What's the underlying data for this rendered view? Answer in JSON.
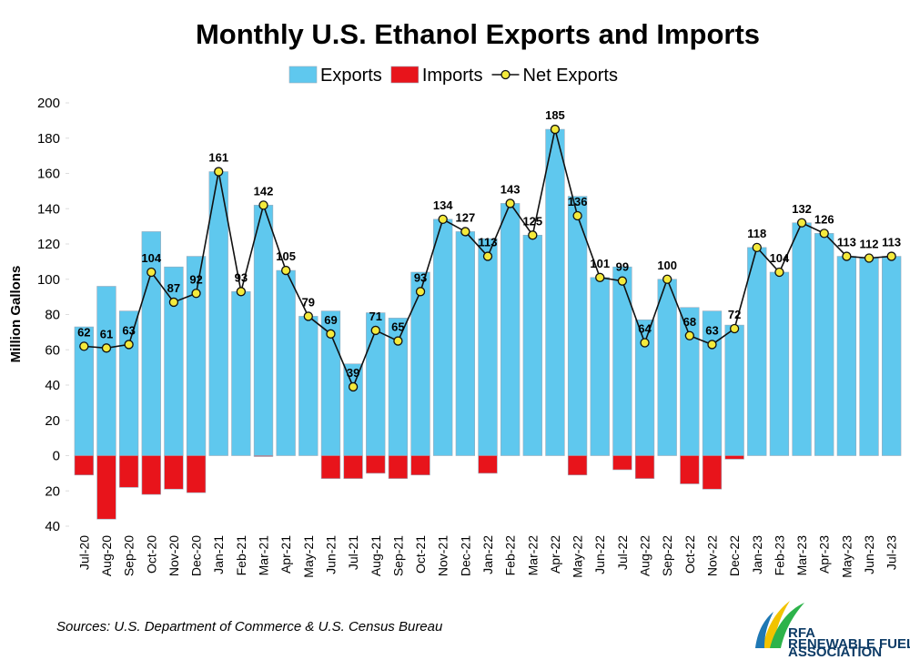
{
  "chart_data": {
    "type": "bar",
    "title": "Monthly U.S. Ethanol Exports and Imports",
    "y_label": "Million Gallons",
    "source": "Sources: U.S. Department of Commerce & U.S. Census Bureau",
    "logo": {
      "name": "RFA",
      "tagline_1": "RENEWABLE FUELS",
      "tagline_2": "ASSOCIATION"
    },
    "categories": [
      "Jul-20",
      "Aug-20",
      "Sep-20",
      "Oct-20",
      "Nov-20",
      "Dec-20",
      "Jan-21",
      "Feb-21",
      "Mar-21",
      "Apr-21",
      "May-21",
      "Jun-21",
      "Jul-21",
      "Aug-21",
      "Sep-21",
      "Oct-21",
      "Nov-21",
      "Dec-21",
      "Jan-22",
      "Feb-22",
      "Mar-22",
      "Apr-22",
      "May-22",
      "Jun-22",
      "Jul-22",
      "Aug-22",
      "Sep-22",
      "Oct-22",
      "Nov-22",
      "Dec-22",
      "Jan-23",
      "Feb-23",
      "Mar-23",
      "Apr-23",
      "May-23",
      "Jun-23",
      "Jul-23"
    ],
    "series": [
      {
        "name": "Exports",
        "type": "bar",
        "color": "#5fc8ee",
        "values": [
          73,
          96,
          82,
          127,
          107,
          113,
          161,
          93,
          142,
          105,
          79,
          82,
          52,
          81,
          78,
          104,
          134,
          127,
          123,
          143,
          125,
          185,
          147,
          101,
          107,
          77,
          100,
          84,
          82,
          74,
          118,
          104,
          132,
          126,
          113,
          112,
          113
        ]
      },
      {
        "name": "Imports",
        "type": "bar",
        "color": "#e8141b",
        "values": [
          -11,
          -36,
          -18,
          -22,
          -19,
          -21,
          0,
          0,
          -0.5,
          0,
          0,
          -13,
          -13,
          -10,
          -13,
          -11,
          0,
          0,
          -10,
          0,
          0,
          0,
          -11,
          0,
          -8,
          -13,
          0,
          -16,
          -19,
          -2,
          0,
          0,
          0,
          0,
          0,
          0,
          0
        ]
      },
      {
        "name": "Net Exports",
        "type": "line",
        "color": "#111111",
        "marker_color": "#f4ea3c",
        "values": [
          62,
          61,
          63,
          104,
          87,
          92,
          161,
          93,
          142,
          105,
          79,
          69,
          39,
          71,
          65,
          93,
          134,
          127,
          113,
          143,
          125,
          185,
          136,
          101,
          99,
          64,
          100,
          68,
          63,
          72,
          118,
          104,
          132,
          126,
          113,
          112,
          113
        ]
      }
    ],
    "ylim": [
      -40,
      200
    ],
    "yticks": [
      {
        "value": -40,
        "label": "40"
      },
      {
        "value": -20,
        "label": "20"
      },
      0,
      20,
      40,
      60,
      80,
      100,
      120,
      140,
      160,
      180,
      200
    ],
    "grid": false,
    "legend": "top"
  }
}
